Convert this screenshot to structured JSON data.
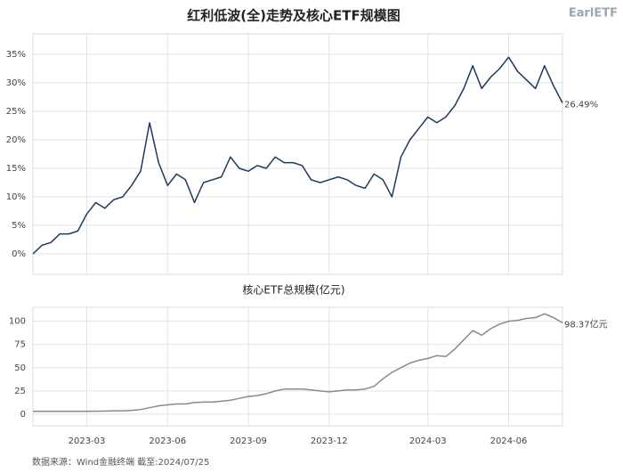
{
  "title": "红利低波(全)走势及核心ETF规模图",
  "logo": "EarlETF",
  "source": "数据来源：Wind金融终端 截至:2024/07/25",
  "chart_data": [
    {
      "type": "line",
      "series": [
        {
          "name": "红利低波(全)",
          "color": "#1f3a5f",
          "values": [
            0,
            1.5,
            2,
            3.5,
            3.5,
            4,
            7,
            9,
            8,
            9.5,
            10,
            12,
            14.5,
            23,
            16,
            12,
            14,
            13,
            9,
            12.5,
            13,
            13.5,
            17,
            15,
            14.5,
            15.5,
            15,
            17,
            16,
            16,
            15.5,
            13,
            12.5,
            13,
            13.5,
            13,
            12,
            11.5,
            14,
            13,
            10,
            17,
            20,
            22,
            24,
            23,
            24,
            26,
            29,
            33,
            29,
            31,
            32.5,
            34.5,
            32,
            30.5,
            29,
            33,
            29.5,
            26.49
          ],
          "value_labels": [
            null,
            null,
            null,
            null,
            null,
            null,
            null,
            null,
            null,
            null,
            null,
            null,
            null,
            null,
            null,
            null,
            null,
            null,
            null,
            null,
            null,
            null,
            null,
            null,
            null,
            null,
            null,
            null,
            null,
            null,
            null,
            null,
            null,
            null,
            null,
            null,
            null,
            null,
            null,
            null,
            null,
            null,
            null,
            null,
            null,
            null,
            null,
            null,
            null,
            null,
            null,
            null,
            null,
            null,
            null,
            null,
            null,
            null,
            null,
            "26.49%"
          ]
        }
      ],
      "ylim": [
        -3.6,
        38.6
      ],
      "yticks": [
        {
          "value": 0,
          "label": "0%"
        },
        {
          "value": 5,
          "label": "5%"
        },
        {
          "value": 10,
          "label": "10%"
        },
        {
          "value": 15,
          "label": "15%"
        },
        {
          "value": 20,
          "label": "20%"
        },
        {
          "value": 25,
          "label": "25%"
        },
        {
          "value": 30,
          "label": "30%"
        },
        {
          "value": 35,
          "label": "35%"
        }
      ],
      "grid": true
    },
    {
      "type": "line",
      "title": "核心ETF总规模(亿元)",
      "categories": [
        null,
        null,
        null,
        null,
        null,
        null,
        "2023-03",
        null,
        null,
        null,
        null,
        null,
        null,
        null,
        null,
        "2023-06",
        null,
        null,
        null,
        null,
        null,
        null,
        null,
        null,
        "2023-09",
        null,
        null,
        null,
        null,
        null,
        null,
        null,
        null,
        "2023-12",
        null,
        null,
        null,
        null,
        null,
        null,
        null,
        null,
        null,
        null,
        "2024-03",
        null,
        null,
        null,
        null,
        null,
        null,
        null,
        null,
        "2024-06",
        null,
        null,
        null,
        null,
        null,
        null
      ],
      "series": [
        {
          "name": "核心ETF总规模",
          "color": "#8a8a8a",
          "values": [
            3,
            3,
            3,
            3,
            3,
            3,
            3,
            3.2,
            3.3,
            3.5,
            3.5,
            4,
            5,
            7,
            9,
            10,
            11,
            11,
            12.5,
            13,
            13,
            14,
            15,
            17,
            19,
            20,
            22,
            25,
            27,
            27,
            27,
            26,
            25,
            24,
            25,
            26,
            26,
            27,
            30,
            38,
            45,
            50,
            55,
            58,
            60,
            63,
            62,
            70,
            80,
            90,
            85,
            92,
            97,
            100,
            101,
            103,
            104,
            108,
            104,
            98.37
          ],
          "value_labels": [
            null,
            null,
            null,
            null,
            null,
            null,
            null,
            null,
            null,
            null,
            null,
            null,
            null,
            null,
            null,
            null,
            null,
            null,
            null,
            null,
            null,
            null,
            null,
            null,
            null,
            null,
            null,
            null,
            null,
            null,
            null,
            null,
            null,
            null,
            null,
            null,
            null,
            null,
            null,
            null,
            null,
            null,
            null,
            null,
            null,
            null,
            null,
            null,
            null,
            null,
            null,
            null,
            null,
            null,
            null,
            null,
            null,
            null,
            null,
            "98.37亿元"
          ]
        }
      ],
      "ylim": [
        -12.5,
        115
      ],
      "yticks": [
        0,
        25,
        50,
        75,
        100
      ],
      "grid": true
    }
  ]
}
